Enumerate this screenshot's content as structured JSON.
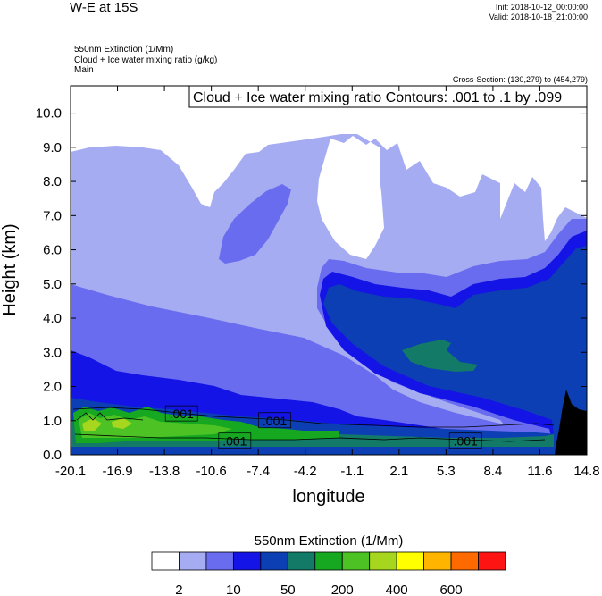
{
  "header": {
    "title": "W-E at 15S",
    "init": "Init: 2018-10-12_00:00:00",
    "valid": "Valid: 2018-10-18_21:00:00",
    "var1": "550nm Extinction   (1/Mm)",
    "var2": "Cloud + Ice water mixing ratio   (g/kg)",
    "var3": "Main",
    "cross_section": "Cross-Section: (130,279) to (454,279)"
  },
  "chart_data": {
    "type": "heatmap",
    "title": "W-E at 15S",
    "xlabel": "longitude",
    "ylabel": "Height (km)",
    "contour_label": "Cloud + Ice water mixing ratio Contours: .001 to .1 by .099",
    "xlim": [
      -20.1,
      14.8
    ],
    "ylim": [
      0,
      10.8
    ],
    "x_ticks": [
      "-20.1",
      "-16.9",
      "-13.8",
      "-10.6",
      "-7.4",
      "-4.2",
      "-1.1",
      "2.1",
      "5.3",
      "8.4",
      "11.6",
      "14.8"
    ],
    "y_ticks": [
      "0.0",
      "1.0",
      "2.0",
      "3.0",
      "4.0",
      "5.0",
      "6.0",
      "7.0",
      "8.0",
      "9.0",
      "10.0"
    ],
    "contour_values": [
      {
        "label": ".001",
        "x": -12.6,
        "y": 1.2
      },
      {
        "label": ".001",
        "x": -6.3,
        "y": 1.0
      },
      {
        "label": ".001",
        "x": -9.0,
        "y": 0.4
      },
      {
        "label": ".001",
        "x": 6.6,
        "y": 0.4
      }
    ],
    "colorbar": {
      "title": "550nm Extinction  (1/Mm)",
      "colors": [
        "#ffffff",
        "#a6acf2",
        "#6a6cf0",
        "#1414e6",
        "#0c3fb4",
        "#127a66",
        "#16a820",
        "#4cc224",
        "#a6d61e",
        "#ffff00",
        "#ffb400",
        "#ff6a00",
        "#ff1414"
      ],
      "labels": [
        "2",
        "10",
        "50",
        "200",
        "400",
        "600"
      ]
    }
  }
}
